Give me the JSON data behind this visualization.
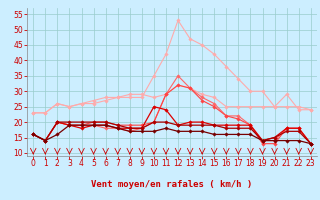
{
  "x": [
    0,
    1,
    2,
    3,
    4,
    5,
    6,
    7,
    8,
    9,
    10,
    11,
    12,
    13,
    14,
    15,
    16,
    17,
    18,
    19,
    20,
    21,
    22,
    23
  ],
  "series": [
    {
      "color": "#ffaaaa",
      "linewidth": 0.8,
      "marker": "D",
      "markersize": 1.8,
      "values": [
        23,
        23,
        26,
        25,
        26,
        26,
        27,
        28,
        28,
        28,
        35,
        42,
        53,
        47,
        45,
        42,
        38,
        34,
        30,
        30,
        25,
        25,
        25,
        24
      ]
    },
    {
      "color": "#ffaaaa",
      "linewidth": 0.8,
      "marker": "D",
      "markersize": 1.8,
      "values": [
        23,
        23,
        26,
        25,
        26,
        27,
        28,
        28,
        29,
        29,
        28,
        29,
        32,
        31,
        29,
        28,
        25,
        25,
        25,
        25,
        25,
        29,
        24,
        24
      ]
    },
    {
      "color": "#ff6666",
      "linewidth": 0.8,
      "marker": "D",
      "markersize": 1.8,
      "values": [
        16,
        14,
        20,
        19,
        19,
        19,
        18,
        18,
        17,
        18,
        20,
        29,
        35,
        31,
        28,
        26,
        22,
        22,
        19,
        14,
        14,
        18,
        18,
        13
      ]
    },
    {
      "color": "#ff4444",
      "linewidth": 0.8,
      "marker": "D",
      "markersize": 1.8,
      "values": [
        16,
        14,
        20,
        19,
        19,
        20,
        20,
        19,
        19,
        19,
        20,
        29,
        32,
        31,
        27,
        25,
        22,
        21,
        19,
        13,
        13,
        18,
        18,
        13
      ]
    },
    {
      "color": "#dd0000",
      "linewidth": 0.9,
      "marker": "D",
      "markersize": 1.8,
      "values": [
        16,
        14,
        20,
        19,
        18,
        19,
        19,
        18,
        18,
        18,
        25,
        24,
        19,
        20,
        20,
        19,
        19,
        19,
        19,
        14,
        15,
        18,
        18,
        13
      ]
    },
    {
      "color": "#aa0000",
      "linewidth": 0.9,
      "marker": "D",
      "markersize": 1.8,
      "values": [
        16,
        14,
        20,
        20,
        20,
        20,
        20,
        19,
        18,
        18,
        20,
        20,
        19,
        19,
        19,
        19,
        18,
        18,
        18,
        14,
        15,
        17,
        17,
        13
      ]
    },
    {
      "color": "#770000",
      "linewidth": 0.9,
      "marker": "D",
      "markersize": 1.8,
      "values": [
        16,
        14,
        16,
        19,
        19,
        19,
        19,
        18,
        17,
        17,
        17,
        18,
        17,
        17,
        17,
        16,
        16,
        16,
        16,
        14,
        14,
        14,
        14,
        13
      ]
    }
  ],
  "xlabel": "Vent moyen/en rafales ( km/h )",
  "xlim_min": -0.5,
  "xlim_max": 23.5,
  "ylim_min": 9,
  "ylim_max": 57,
  "yticks": [
    10,
    15,
    20,
    25,
    30,
    35,
    40,
    45,
    50,
    55
  ],
  "xticks": [
    0,
    1,
    2,
    3,
    4,
    5,
    6,
    7,
    8,
    9,
    10,
    11,
    12,
    13,
    14,
    15,
    16,
    17,
    18,
    19,
    20,
    21,
    22,
    23
  ],
  "background_color": "#cceeff",
  "grid_color": "#99cccc",
  "tick_color": "#cc0000",
  "label_color": "#cc0000",
  "axis_fontsize": 5.5,
  "xlabel_fontsize": 6.5
}
